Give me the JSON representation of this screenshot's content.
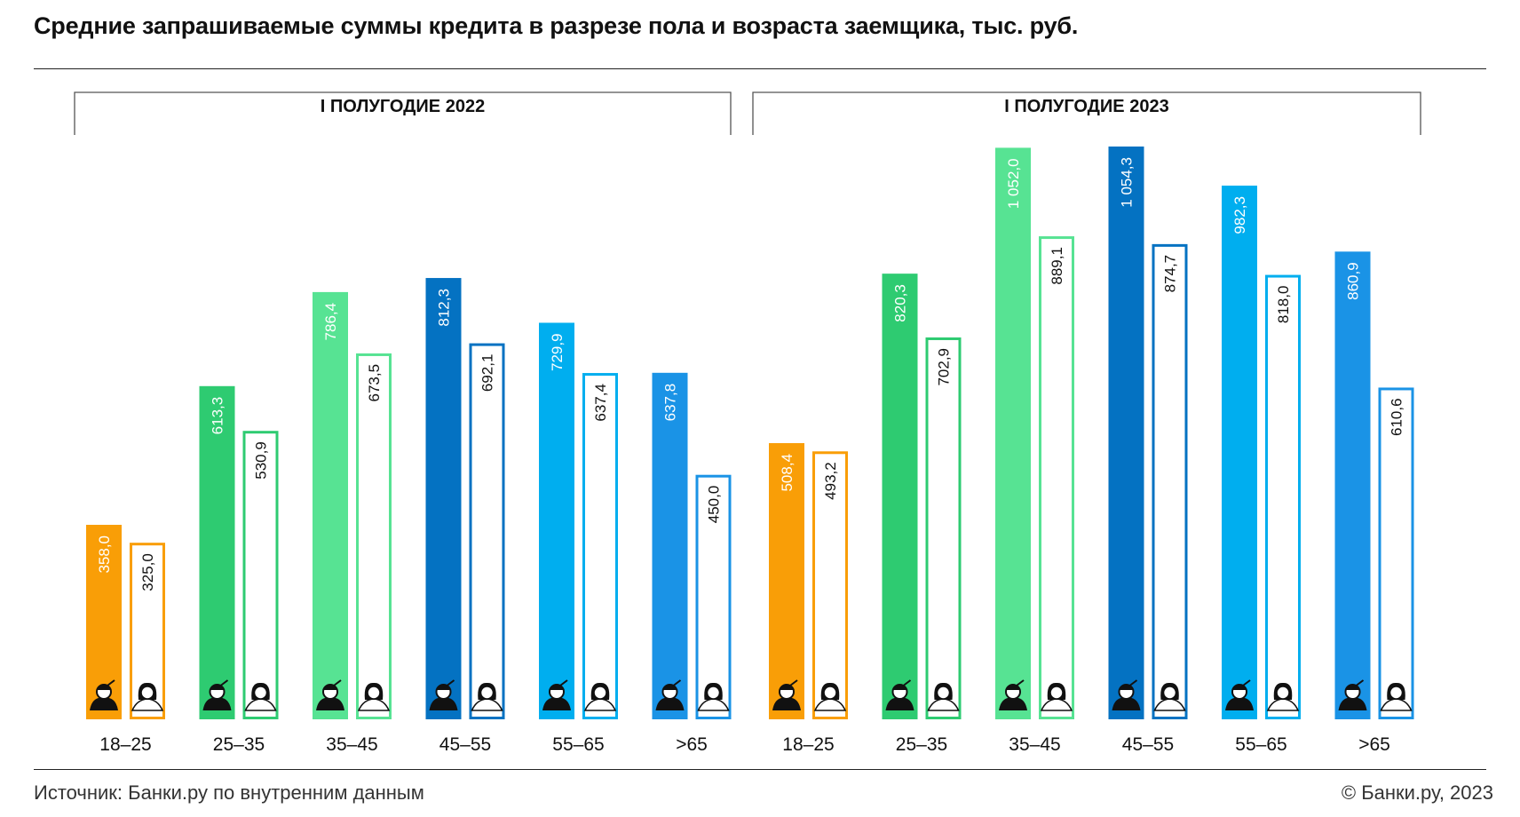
{
  "title": "Средние запрашиваемые суммы кредита в разрезе пола и возраста заемщика, тыс. руб.",
  "source": "Источник: Банки.ру по внутренним данным",
  "copyright": "© Банки.ру, 2023",
  "colors": {
    "18-25": "#f99e07",
    "25-35": "#2ecb71",
    "35-45": "#57e393",
    "45-55": "#0472c2",
    "55-65": "#00aeef",
    ">65": "#1a93e6"
  },
  "chart_data": {
    "type": "bar",
    "title": "Средние запрашиваемые суммы кредита в разрезе пола и возраста заемщика, тыс. руб.",
    "categories": [
      "18–25",
      "25–35",
      "35–45",
      "45–55",
      "55–65",
      ">65"
    ],
    "periods": [
      {
        "name": "I ПОЛУГОДИЕ 2022",
        "series": [
          {
            "values": [
              358.0,
              613.3,
              786.4,
              812.3,
              729.9,
              637.8
            ],
            "labels": [
              "358,0",
              "613,3",
              "786,4",
              "812,3",
              "729,9",
              "637,8"
            ],
            "style": "filled",
            "icon": "man-icon"
          },
          {
            "values": [
              325.0,
              530.9,
              673.5,
              692.1,
              637.4,
              450.0
            ],
            "labels": [
              "325,0",
              "530,9",
              "673,5",
              "692,1",
              "637,4",
              "450,0"
            ],
            "style": "outlined",
            "icon": "woman-icon"
          }
        ]
      },
      {
        "name": "I ПОЛУГОДИЕ 2023",
        "series": [
          {
            "values": [
              508.4,
              820.3,
              1052.0,
              1054.3,
              982.3,
              860.9
            ],
            "labels": [
              "508,4",
              "820,3",
              "1 052,0",
              "1 054,3",
              "982,3",
              "860,9"
            ],
            "style": "filled",
            "icon": "man-icon"
          },
          {
            "values": [
              493.2,
              702.9,
              889.1,
              874.7,
              818.0,
              610.6
            ],
            "labels": [
              "493,2",
              "702,9",
              "889,1",
              "874,7",
              "818,0",
              "610,6"
            ],
            "style": "outlined",
            "icon": "woman-icon"
          }
        ]
      }
    ],
    "ylim": [
      0,
      1054.3
    ],
    "grid": false,
    "legend": "none"
  }
}
